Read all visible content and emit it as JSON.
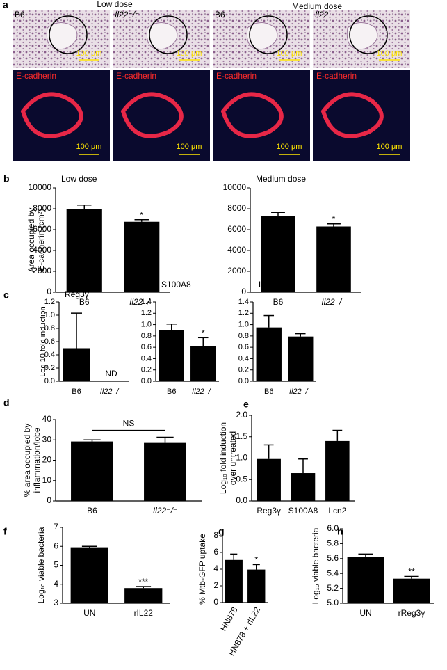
{
  "figure_a": {
    "panel": "a",
    "groups": [
      "Low dose",
      "Medium dose"
    ],
    "images": [
      {
        "label": "B6",
        "scale": "100 μm"
      },
      {
        "label": "Il22⁻/⁻",
        "scale": "100 μm"
      },
      {
        "label": "B6",
        "scale": "100 μm"
      },
      {
        "label": "Il22",
        "scale": "100 μm"
      }
    ],
    "stain_images": [
      {
        "label": "E-cadherin",
        "scale": "100 μm"
      },
      {
        "label": "E-cadherin",
        "scale": "100 μm"
      },
      {
        "label": "E-cadherin",
        "scale": "100 μm"
      },
      {
        "label": "E-cadherin",
        "scale": "100 μm"
      }
    ]
  },
  "chart_data": [
    {
      "type": "bar",
      "panel": "b",
      "title": "Low dose",
      "ylabel": [
        "Area occupied by",
        "E-cadherin (cm²)"
      ],
      "categories": [
        "B6",
        "Il22⁻/⁻"
      ],
      "values": [
        8000,
        6750
      ],
      "errors": [
        350,
        200
      ],
      "significance": [
        null,
        "*"
      ],
      "color": "#000000",
      "ylim": [
        0,
        10000
      ],
      "yticks": [
        0,
        2000,
        4000,
        6000,
        8000,
        10000
      ]
    },
    {
      "type": "bar",
      "title": "Medium dose",
      "categories": [
        "B6",
        "Il22⁻/⁻"
      ],
      "values": [
        7300,
        6300
      ],
      "errors": [
        350,
        250
      ],
      "significance": [
        null,
        "*"
      ],
      "color": "#000000",
      "ylim": [
        0,
        10000
      ],
      "yticks": [
        0,
        2000,
        4000,
        6000,
        8000,
        10000
      ]
    },
    {
      "type": "bar",
      "panel": "c",
      "title": "Reg3γ",
      "ylabel": [
        "Log 10 fold induction"
      ],
      "categories": [
        "B6",
        "Il22⁻/⁻"
      ],
      "values": [
        0.5,
        null
      ],
      "value_labels": [
        null,
        "ND"
      ],
      "errors": [
        0.53,
        null
      ],
      "color": "#000000",
      "ylim": [
        0,
        1.2
      ],
      "yticks": [
        {
          "value": 0,
          "label": "0.0"
        },
        {
          "value": 0.2,
          "label": "0.2"
        },
        {
          "value": 0.4,
          "label": "0.4"
        },
        {
          "value": 0.6,
          "label": "0.6"
        },
        {
          "value": 0.8,
          "label": "0.8"
        },
        {
          "value": 1,
          "label": "1.0"
        },
        {
          "value": 1.2,
          "label": "1.2"
        }
      ]
    },
    {
      "type": "bar",
      "title": "S100A8",
      "categories": [
        "B6",
        "Il22⁻/⁻"
      ],
      "values": [
        0.9,
        0.62
      ],
      "errors": [
        0.11,
        0.15
      ],
      "significance": [
        null,
        "*"
      ],
      "color": "#000000",
      "ylim": [
        0,
        1.4
      ],
      "yticks": [
        {
          "value": 0,
          "label": "0.0"
        },
        {
          "value": 0.2,
          "label": "0.2"
        },
        {
          "value": 0.4,
          "label": "0.4"
        },
        {
          "value": 0.6,
          "label": "0.6"
        },
        {
          "value": 0.8,
          "label": "0.8"
        },
        {
          "value": 1,
          "label": "1.0"
        },
        {
          "value": 1.2,
          "label": "1.2"
        },
        {
          "value": 1.4,
          "label": "1.4"
        }
      ]
    },
    {
      "type": "bar",
      "title": "Lcn2",
      "categories": [
        "B6",
        "Il22⁻/⁻"
      ],
      "values": [
        0.95,
        0.79
      ],
      "errors": [
        0.21,
        0.05
      ],
      "color": "#000000",
      "ylim": [
        0,
        1.4
      ],
      "yticks": [
        {
          "value": 0,
          "label": "0.0"
        },
        {
          "value": 0.2,
          "label": "0.2"
        },
        {
          "value": 0.4,
          "label": "0.4"
        },
        {
          "value": 0.6,
          "label": "0.6"
        },
        {
          "value": 0.8,
          "label": "0.8"
        },
        {
          "value": 1,
          "label": "1.0"
        },
        {
          "value": 1.2,
          "label": "1.2"
        },
        {
          "value": 1.4,
          "label": "1.4"
        }
      ]
    },
    {
      "type": "bar",
      "panel": "d",
      "ylabel": [
        "% area occupied by",
        "inflammation/lobe"
      ],
      "categories": [
        "B6",
        "Il22⁻/⁻"
      ],
      "values": [
        29.2,
        28.5
      ],
      "errors": [
        0.8,
        2.8
      ],
      "bracket_label": "NS",
      "color": "#000000",
      "ylim": [
        0,
        40
      ],
      "yticks": [
        0,
        10,
        20,
        30,
        40
      ]
    },
    {
      "type": "bar",
      "panel": "e",
      "ylabel": [
        "Log₁₀ fold induction",
        "over untreated"
      ],
      "categories": [
        "Reg3γ",
        "S100A8",
        "Lcn2"
      ],
      "values": [
        0.98,
        0.65,
        1.4
      ],
      "errors": [
        0.33,
        0.33,
        0.25
      ],
      "color": "#000000",
      "ylim": [
        0,
        2
      ],
      "yticks": [
        {
          "value": 0,
          "label": "0.0"
        },
        {
          "value": 0.5,
          "label": "0.5"
        },
        {
          "value": 1,
          "label": "1.0"
        },
        {
          "value": 1.5,
          "label": "1.5"
        },
        {
          "value": 2,
          "label": "2.0"
        }
      ]
    },
    {
      "type": "bar",
      "panel": "f",
      "ylabel": [
        "Log₁₀ viable bacteria"
      ],
      "categories": [
        "UN",
        "rIL22"
      ],
      "values": [
        5.95,
        3.8
      ],
      "errors": [
        0.05,
        0.08
      ],
      "significance": [
        null,
        "***"
      ],
      "color": "#000000",
      "ylim": [
        3,
        7
      ],
      "yticks": [
        3,
        4,
        5,
        6,
        7
      ]
    },
    {
      "type": "bar",
      "panel": "g",
      "ylabel": [
        "% Mtb-GFP uptake"
      ],
      "categories": [
        "HN878",
        "HN878 + rIL22"
      ],
      "values": [
        5.1,
        3.95
      ],
      "errors": [
        0.7,
        0.6
      ],
      "significance": [
        null,
        "*"
      ],
      "color": "#000000",
      "ylim": [
        0,
        8
      ],
      "yticks": [
        0,
        2,
        4,
        6,
        8
      ]
    },
    {
      "type": "bar",
      "panel": "h",
      "ylabel": [
        "Log₁₀ viable bacteria"
      ],
      "categories": [
        "UN",
        "rReg3γ"
      ],
      "values": [
        5.62,
        5.33
      ],
      "errors": [
        0.04,
        0.03
      ],
      "significance": [
        null,
        "**"
      ],
      "color": "#000000",
      "ylim": [
        5,
        6
      ],
      "yticks": [
        {
          "value": 5,
          "label": "5.0"
        },
        {
          "value": 5.2,
          "label": "5.2"
        },
        {
          "value": 5.4,
          "label": "5.4"
        },
        {
          "value": 5.6,
          "label": "5.6"
        },
        {
          "value": 5.8,
          "label": "5.8"
        },
        {
          "value": 6,
          "label": "6.0"
        }
      ]
    }
  ]
}
